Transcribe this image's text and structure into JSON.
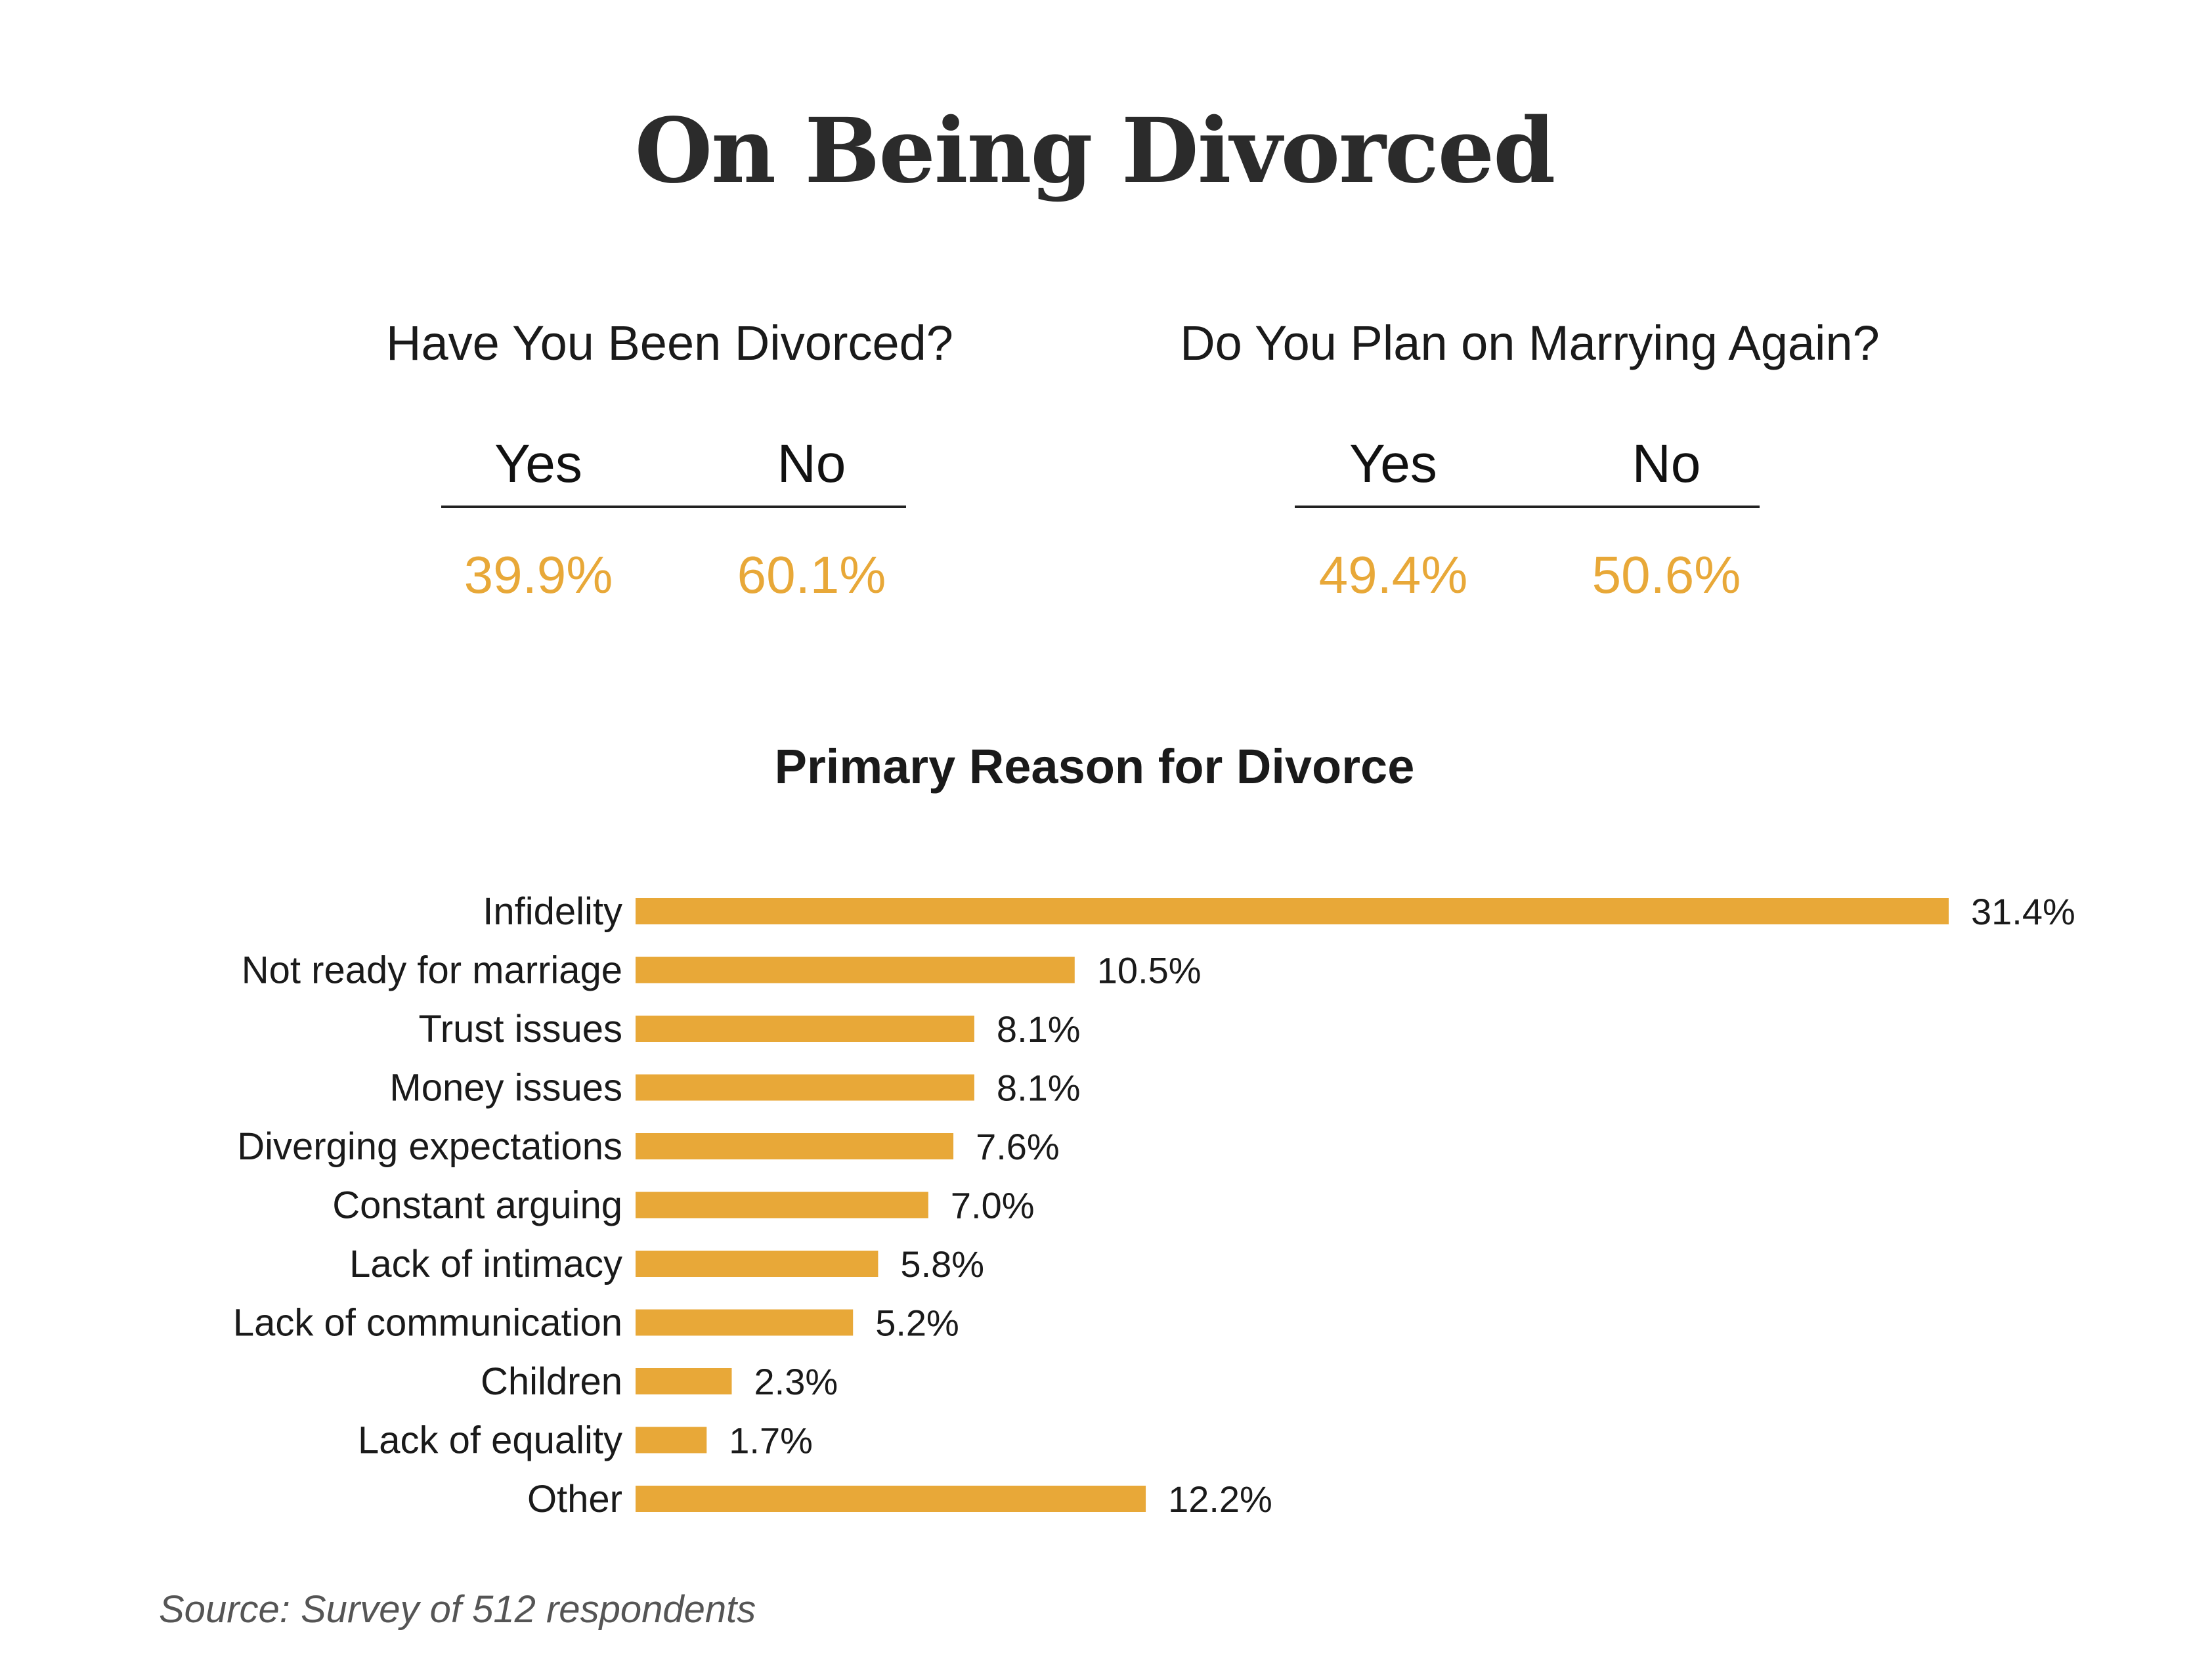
{
  "title": "On Being Divorced",
  "colors": {
    "accent": "#e8a838",
    "text": "#1a1a1a",
    "rule": "#222222"
  },
  "divorced": {
    "question": "Have You Been Divorced?",
    "yes_label": "Yes",
    "no_label": "No",
    "yes_value": "39.9%",
    "no_value": "60.1%"
  },
  "remarry": {
    "question": "Do You Plan on Marrying Again?",
    "yes_label": "Yes",
    "no_label": "No",
    "yes_value": "49.4%",
    "no_value": "50.6%"
  },
  "chart_data": {
    "type": "bar",
    "orientation": "horizontal",
    "title": "Primary Reason for Divorce",
    "categories": [
      "Infidelity",
      "Not ready for marriage",
      "Trust issues",
      "Money issues",
      "Diverging expectations",
      "Constant arguing",
      "Lack of intimacy",
      "Lack of communication",
      "Children",
      "Lack of equality",
      "Other"
    ],
    "values": [
      31.4,
      10.5,
      8.1,
      8.1,
      7.6,
      7.0,
      5.8,
      5.2,
      2.3,
      1.7,
      12.2
    ],
    "value_labels": [
      "31.4%",
      "10.5%",
      "8.1%",
      "8.1%",
      "7.6%",
      "7.0%",
      "5.8%",
      "5.2%",
      "2.3%",
      "1.7%",
      "12.2%"
    ],
    "xlabel": "",
    "ylabel": "",
    "grid": false,
    "bar_color": "#e8a838"
  },
  "source": "Source: Survey of 512 respondents"
}
